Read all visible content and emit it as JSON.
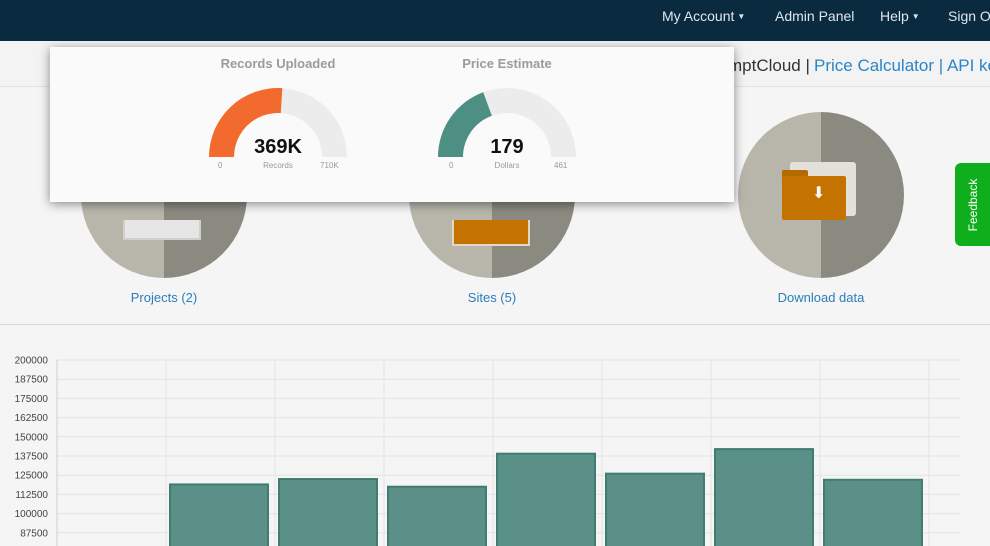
{
  "nav": {
    "my_account": "My Account",
    "admin_panel": "Admin Panel",
    "help": "Help",
    "sign_out": "Sign Out"
  },
  "subbar": {
    "brand_tail": "mptCloud |",
    "price_calculator": "Price Calculator",
    "separator": " | ",
    "api_keys": "API keys"
  },
  "tiles": [
    {
      "label": "Projects (2)",
      "icon": "monitor-icon"
    },
    {
      "label": "Sites (5)",
      "icon": "site-icon"
    },
    {
      "label": "Download data",
      "icon": "download-folder-icon"
    }
  ],
  "gauges": [
    {
      "title": "Records Uploaded",
      "value_text": "369K",
      "min": "0",
      "max": "710K",
      "unit": "Records",
      "fraction": 0.52,
      "color": "#f26a2e"
    },
    {
      "title": "Price Estimate",
      "value_text": "179",
      "min": "0",
      "max": "461",
      "unit": "Dollars",
      "fraction": 0.388,
      "color": "#4e8f84"
    }
  ],
  "feedback": "Feedback",
  "colors": {
    "nav_bg": "#0a2a3f",
    "link": "#2a7fba",
    "bar_fill": "#5a9088",
    "bar_stroke": "#3f7d73",
    "feedback_bg": "#0fae1c"
  },
  "chart_data": {
    "type": "bar",
    "y_ticks": [
      "200000",
      "187500",
      "175000",
      "162500",
      "150000",
      "137500",
      "125000",
      "112500",
      "100000",
      "87500"
    ],
    "values": [
      119000,
      122500,
      117500,
      139000,
      126000,
      142000,
      122000
    ],
    "ylim": [
      87500,
      200000
    ],
    "grid": true
  }
}
